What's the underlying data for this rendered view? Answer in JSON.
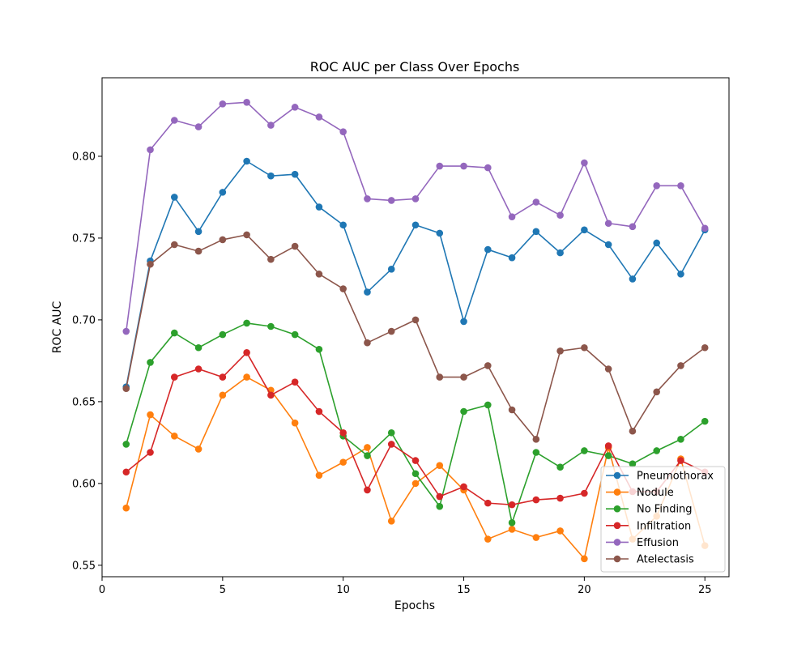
{
  "chart_data": {
    "type": "line",
    "title": "ROC AUC per Class Over Epochs",
    "xlabel": "Epochs",
    "ylabel": "ROC AUC",
    "xlim": [
      0.0,
      26.0
    ],
    "ylim": [
      0.543,
      0.848
    ],
    "xticks": [
      0,
      5,
      10,
      15,
      20,
      25
    ],
    "yticks": [
      0.55,
      0.6,
      0.65,
      0.7,
      0.75,
      0.8
    ],
    "ytick_labels": [
      "0.55",
      "0.60",
      "0.65",
      "0.70",
      "0.75",
      "0.80"
    ],
    "grid": false,
    "legend_position": "lower-right",
    "x": [
      1,
      2,
      3,
      4,
      5,
      6,
      7,
      8,
      9,
      10,
      11,
      12,
      13,
      14,
      15,
      16,
      17,
      18,
      19,
      20,
      21,
      22,
      23,
      24,
      25
    ],
    "series": [
      {
        "name": "Pneumothorax",
        "color": "#1f77b4",
        "values": [
          0.659,
          0.736,
          0.775,
          0.754,
          0.778,
          0.797,
          0.788,
          0.789,
          0.769,
          0.758,
          0.717,
          0.731,
          0.758,
          0.753,
          0.699,
          0.743,
          0.738,
          0.754,
          0.741,
          0.755,
          0.746,
          0.725,
          0.747,
          0.728,
          0.755
        ]
      },
      {
        "name": "Nodule",
        "color": "#ff7f0e",
        "values": [
          0.585,
          0.642,
          0.629,
          0.621,
          0.654,
          0.665,
          0.657,
          0.637,
          0.605,
          0.613,
          0.622,
          0.577,
          0.6,
          0.611,
          0.596,
          0.566,
          0.572,
          0.567,
          0.571,
          0.554,
          0.622,
          0.566,
          0.58,
          0.615,
          0.562
        ]
      },
      {
        "name": "No Finding",
        "color": "#2ca02c",
        "values": [
          0.624,
          0.674,
          0.692,
          0.683,
          0.691,
          0.698,
          0.696,
          0.691,
          0.682,
          0.629,
          0.617,
          0.631,
          0.606,
          0.586,
          0.644,
          0.648,
          0.576,
          0.619,
          0.61,
          0.62,
          0.617,
          0.612,
          0.62,
          0.627,
          0.638
        ]
      },
      {
        "name": "Infiltration",
        "color": "#d62728",
        "values": [
          0.607,
          0.619,
          0.665,
          0.67,
          0.665,
          0.68,
          0.654,
          0.662,
          0.644,
          0.631,
          0.596,
          0.624,
          0.614,
          0.592,
          0.598,
          0.588,
          0.587,
          0.59,
          0.591,
          0.594,
          0.623,
          0.595,
          0.595,
          0.614,
          0.607
        ]
      },
      {
        "name": "Effusion",
        "color": "#9467bd",
        "values": [
          0.693,
          0.804,
          0.822,
          0.818,
          0.832,
          0.833,
          0.819,
          0.83,
          0.824,
          0.815,
          0.774,
          0.773,
          0.774,
          0.794,
          0.794,
          0.793,
          0.763,
          0.772,
          0.764,
          0.796,
          0.759,
          0.757,
          0.782,
          0.782,
          0.756
        ]
      },
      {
        "name": "Atelectasis",
        "color": "#8c564b",
        "values": [
          0.658,
          0.734,
          0.746,
          0.742,
          0.749,
          0.752,
          0.737,
          0.745,
          0.728,
          0.719,
          0.686,
          0.693,
          0.7,
          0.665,
          0.665,
          0.672,
          0.645,
          0.627,
          0.681,
          0.683,
          0.67,
          0.632,
          0.656,
          0.672,
          0.683
        ]
      }
    ]
  }
}
